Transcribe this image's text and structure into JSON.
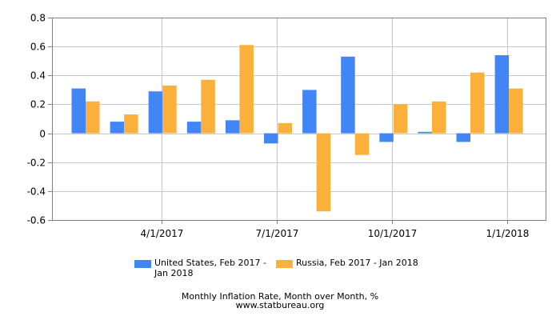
{
  "chart_data": {
    "type": "bar",
    "x_ticks": [
      "4/1/2017",
      "7/1/2017",
      "10/1/2017",
      "1/1/2018"
    ],
    "months": [
      "2017-02",
      "2017-03",
      "2017-04",
      "2017-05",
      "2017-06",
      "2017-07",
      "2017-08",
      "2017-09",
      "2017-10",
      "2017-11",
      "2017-12",
      "2018-01"
    ],
    "series": [
      {
        "name": "United States, Feb 2017 - Jan 2018",
        "color": "#4285f4",
        "values": [
          0.31,
          0.08,
          0.29,
          0.08,
          0.09,
          -0.07,
          0.3,
          0.53,
          -0.06,
          0.01,
          -0.06,
          0.54
        ]
      },
      {
        "name": "Russia, Feb 2017 - Jan 2018",
        "color": "#fbb03b",
        "values": [
          0.22,
          0.13,
          0.33,
          0.37,
          0.61,
          0.07,
          -0.54,
          -0.15,
          0.2,
          0.22,
          0.42,
          0.31
        ]
      }
    ],
    "y_ticks": [
      "0.8",
      "0.6",
      "0.4",
      "0.2",
      "0",
      "-0.2",
      "-0.4",
      "-0.6"
    ],
    "ylim": [
      -0.6,
      0.8
    ],
    "grid": true,
    "legend_position": "bottom"
  },
  "legend": {
    "us_label": "United States, Feb 2017 - Jan 2018",
    "ru_label": "Russia, Feb 2017 - Jan 2018"
  },
  "caption": {
    "title": "Monthly Inflation Rate, Month over Month, %",
    "source": "www.statbureau.org"
  }
}
